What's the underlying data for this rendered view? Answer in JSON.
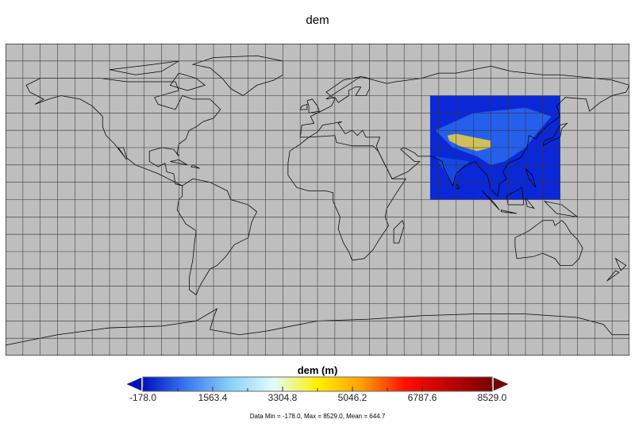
{
  "title": "dem",
  "map": {
    "projection": "equirectangular",
    "extent_lon": [
      -180,
      180
    ],
    "extent_lat": [
      -90,
      90
    ],
    "grid_spacing_deg": 10,
    "background_color": "#bebebe",
    "data_region": {
      "lon": [
        65,
        140
      ],
      "lat": [
        0,
        60
      ]
    }
  },
  "colorbar": {
    "label": "dem (m)",
    "ticks": [
      "-178.0",
      "1563.4",
      "3304.8",
      "5046.2",
      "6787.6",
      "8529.0"
    ],
    "min": -178.0,
    "max": 8529.0,
    "colors": [
      "#0010c0",
      "#3a78f0",
      "#88d0f8",
      "#e0fcfc",
      "#fff000",
      "#ffa000",
      "#ff1000",
      "#c00000",
      "#7a0000"
    ]
  },
  "footnote": "Data Min = -178.0, Max = 8529.0, Mean = 644.7"
}
